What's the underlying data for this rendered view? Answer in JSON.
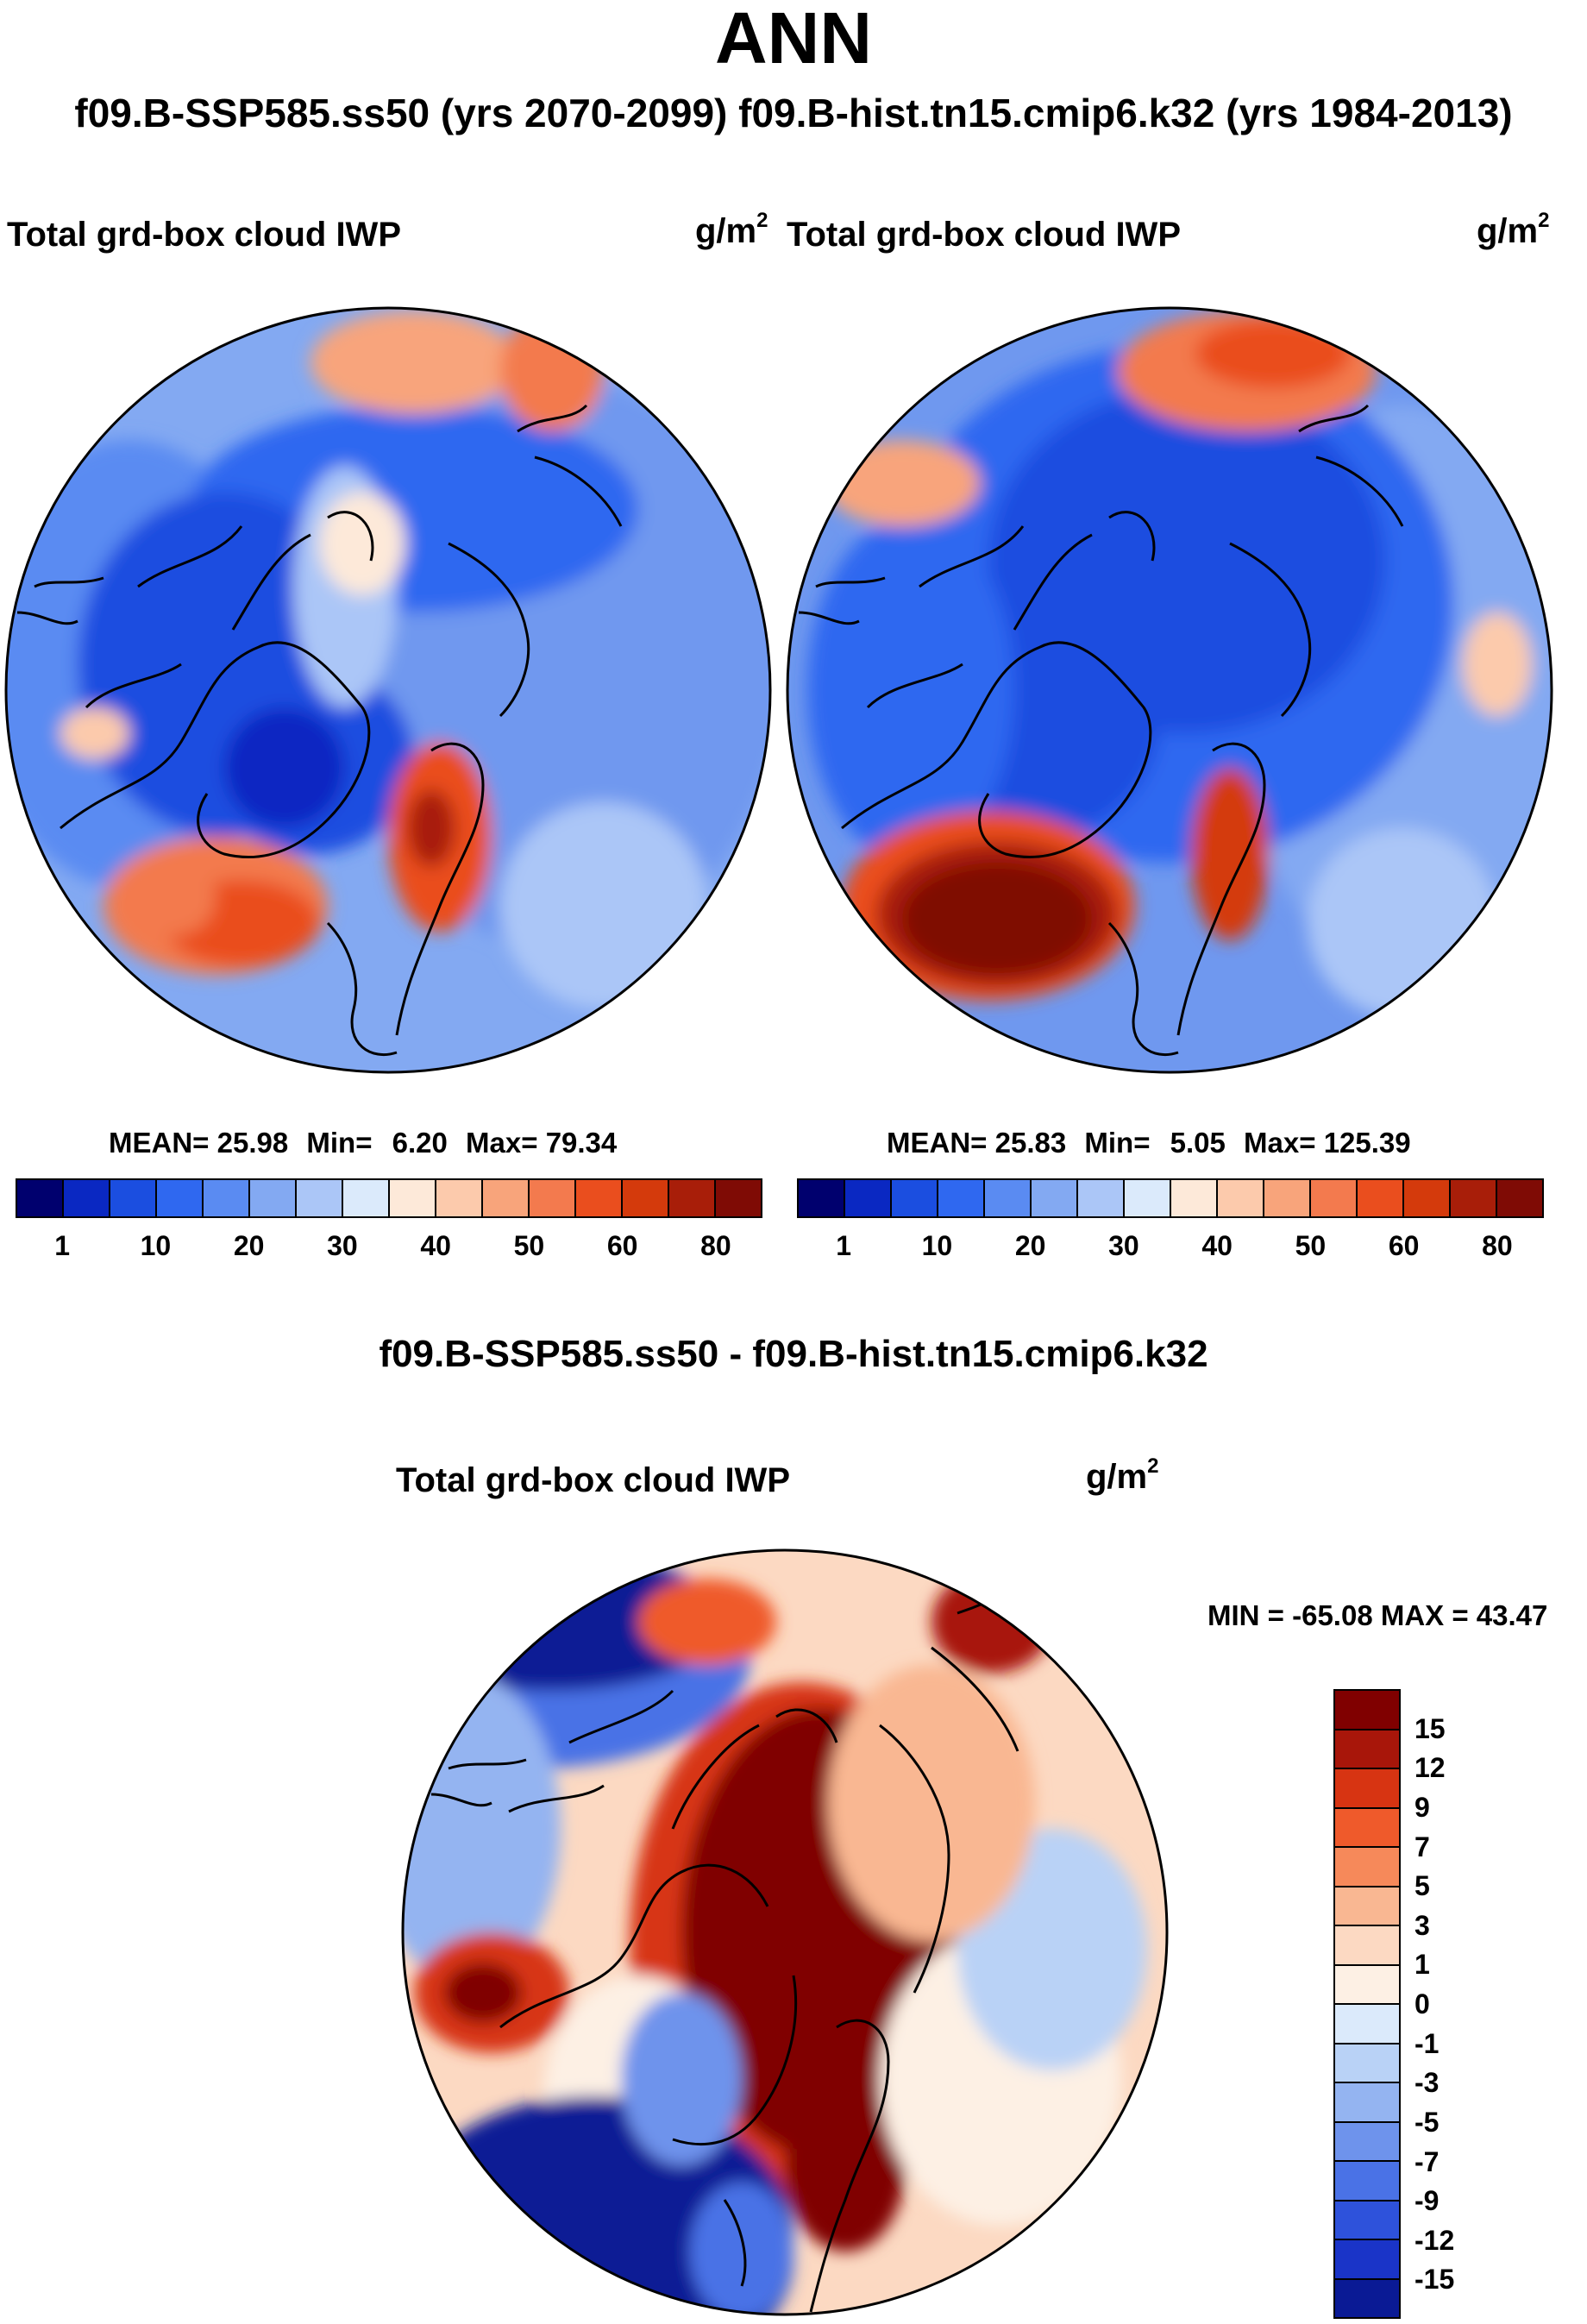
{
  "page": {
    "title": "ANN",
    "subtitle": "f09.B-SSP585.ss50 (yrs 2070-2099)  f09.B-hist.tn15.cmip6.k32 (yrs 1984-2013)"
  },
  "chart_data": [
    {
      "type": "heatmap",
      "projection": "north polar stereographic",
      "case": "f09.B-SSP585.ss50 (yrs 2070-2099)",
      "variable": "Total grd-box cloud IWP",
      "units_base": "g/m",
      "units_exp": "2",
      "stats": {
        "mean_label": "MEAN=",
        "mean": "25.98",
        "min_label": "Min=",
        "min": "6.20",
        "max_label": "Max=",
        "max": "79.34"
      },
      "colorbar": {
        "colors": [
          "#00006e",
          "#0a28c2",
          "#1b4ee0",
          "#2f68f0",
          "#5a8bf2",
          "#83a9f2",
          "#abc6f7",
          "#dbeafb",
          "#fde9d9",
          "#fccaac",
          "#f8a47b",
          "#f37a4e",
          "#ea4e1e",
          "#d43a0c",
          "#a81e09",
          "#7f0b05"
        ],
        "labels": [
          "1",
          "10",
          "20",
          "30",
          "40",
          "50",
          "60",
          "80"
        ]
      }
    },
    {
      "type": "heatmap",
      "projection": "north polar stereographic",
      "case": "f09.B-hist.tn15.cmip6.k32 (yrs 1984-2013)",
      "variable": "Total grd-box cloud IWP",
      "units_base": "g/m",
      "units_exp": "2",
      "stats": {
        "mean_label": "MEAN=",
        "mean": "25.83",
        "min_label": "Min=",
        "min": "5.05",
        "max_label": "Max=",
        "max": "125.39"
      },
      "colorbar": {
        "colors": [
          "#00006e",
          "#0a28c2",
          "#1b4ee0",
          "#2f68f0",
          "#5a8bf2",
          "#83a9f2",
          "#abc6f7",
          "#dbeafb",
          "#fde9d9",
          "#fccaac",
          "#f8a47b",
          "#f37a4e",
          "#ea4e1e",
          "#d43a0c",
          "#a81e09",
          "#7f0b05"
        ],
        "labels": [
          "1",
          "10",
          "20",
          "30",
          "40",
          "50",
          "60",
          "80"
        ]
      }
    },
    {
      "type": "heatmap",
      "projection": "north polar stereographic",
      "title": "f09.B-SSP585.ss50 - f09.B-hist.tn15.cmip6.k32",
      "variable": "Total grd-box cloud IWP",
      "units_base": "g/m",
      "units_exp": "2",
      "minmax": "MIN = -65.08 MAX =  43.47",
      "colorbar": {
        "colors": [
          "#800000",
          "#a8160a",
          "#d73412",
          "#ef5a2b",
          "#f6895a",
          "#f9b792",
          "#fcd9c2",
          "#fdf0e4",
          "#dbeafb",
          "#b9d2f6",
          "#94b4f1",
          "#6e93ec",
          "#4a72e6",
          "#2e52db",
          "#1a34c8",
          "#0a1a95"
        ],
        "labels": [
          "15",
          "12",
          "9",
          "7",
          "5",
          "3",
          "1",
          "0",
          "-1",
          "-3",
          "-5",
          "-7",
          "-9",
          "-12",
          "-15"
        ]
      }
    }
  ]
}
